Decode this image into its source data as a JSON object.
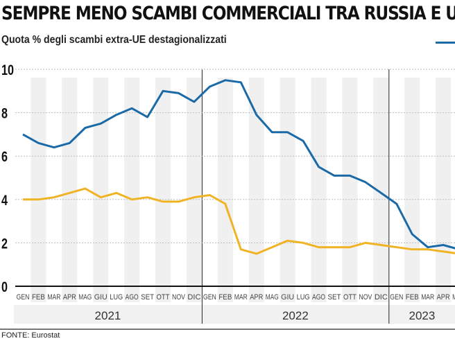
{
  "chart_data": {
    "type": "line",
    "title": "SEMPRE MENO SCAMBI COMMERCIALI TRA RUSSIA E UE",
    "subtitle": "Quota % degli scambi extra-UE destagionalizzati",
    "source": "FONTE: Eurostat",
    "years": [
      {
        "label": "2021",
        "months": 12
      },
      {
        "label": "2022",
        "months": 12
      },
      {
        "label": "2023",
        "months": 5
      }
    ],
    "categories": [
      "GEN",
      "FEB",
      "MAR",
      "APR",
      "MAG",
      "GIU",
      "LUG",
      "AGO",
      "SET",
      "OTT",
      "NOV",
      "DIC",
      "GEN",
      "FEB",
      "MAR",
      "APR",
      "MAG",
      "GIU",
      "LUG",
      "AGO",
      "SET",
      "OTT",
      "NOV",
      "DIC",
      "GEN",
      "FEB",
      "MAR",
      "APR",
      "MAG"
    ],
    "ylim": [
      0,
      10
    ],
    "yticks": [
      0,
      2,
      4,
      6,
      8,
      10
    ],
    "grid": true,
    "legend": "top-right",
    "series": [
      {
        "color": "#1a6aa8",
        "values": [
          7.0,
          6.6,
          6.4,
          6.6,
          7.3,
          7.5,
          7.9,
          8.2,
          7.8,
          9.0,
          8.9,
          8.5,
          9.2,
          9.5,
          9.4,
          7.9,
          7.1,
          7.1,
          6.7,
          5.5,
          5.1,
          5.1,
          4.8,
          4.3,
          3.8,
          2.4,
          1.8,
          1.9,
          1.7
        ]
      },
      {
        "color": "#f0b323",
        "values": [
          4.0,
          4.0,
          4.1,
          4.3,
          4.5,
          4.1,
          4.3,
          4.0,
          4.1,
          3.9,
          3.9,
          4.1,
          4.2,
          3.8,
          1.7,
          1.5,
          1.8,
          2.1,
          2.0,
          1.8,
          1.8,
          1.8,
          2.0,
          1.9,
          1.8,
          1.7,
          1.7,
          1.6,
          1.5
        ]
      }
    ]
  }
}
